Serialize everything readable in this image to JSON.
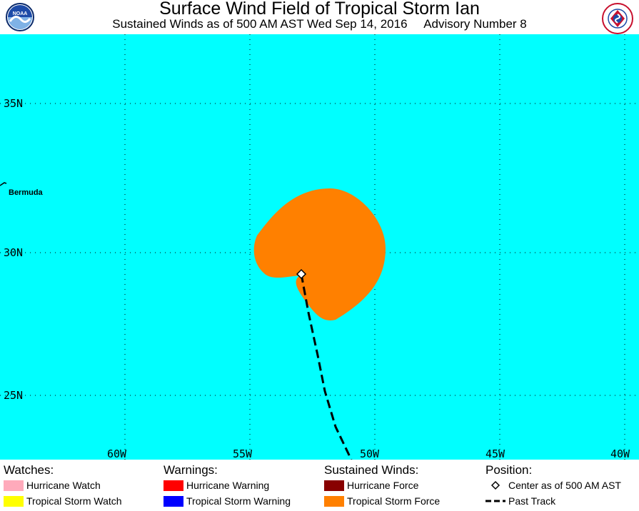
{
  "header": {
    "title": "Surface Wind Field of Tropical Storm Ian",
    "subtitle": "Sustained Winds as of 500 AM AST Wed Sep 14, 2016     Advisory Number 8",
    "noaa_logo_text": "NOAA",
    "nws_logo_text": "NATIONAL WEATHER SERVICE"
  },
  "map": {
    "background_color": "#00ffff",
    "latitude_labels": [
      "35N",
      "30N",
      "25N"
    ],
    "longitude_labels": [
      "60W",
      "55W",
      "50W",
      "45W",
      "40W"
    ],
    "place_labels": [
      "Bermuda"
    ],
    "storm_center": {
      "lat": 29.2,
      "lon": -52.3
    },
    "wind_field_color": "#ff8000",
    "track_color": "#000000"
  },
  "legend": {
    "watches": {
      "heading": "Watches:",
      "items": [
        {
          "label": "Hurricane Watch",
          "color": "#ffaabb"
        },
        {
          "label": "Tropical Storm Watch",
          "color": "#ffff00"
        }
      ]
    },
    "warnings": {
      "heading": "Warnings:",
      "items": [
        {
          "label": "Hurricane Warning",
          "color": "#ff0000"
        },
        {
          "label": "Tropical Storm Warning",
          "color": "#0000ff"
        }
      ]
    },
    "winds": {
      "heading": "Sustained Winds:",
      "items": [
        {
          "label": "Hurricane Force",
          "color": "#880000"
        },
        {
          "label": "Tropical Storm Force",
          "color": "#ff8000"
        }
      ]
    },
    "position": {
      "heading": "Position:",
      "items": [
        {
          "label": "Center as of 500 AM AST",
          "icon": "diamond-icon"
        },
        {
          "label": "Past Track",
          "icon": "dashed-line-icon"
        }
      ]
    }
  }
}
